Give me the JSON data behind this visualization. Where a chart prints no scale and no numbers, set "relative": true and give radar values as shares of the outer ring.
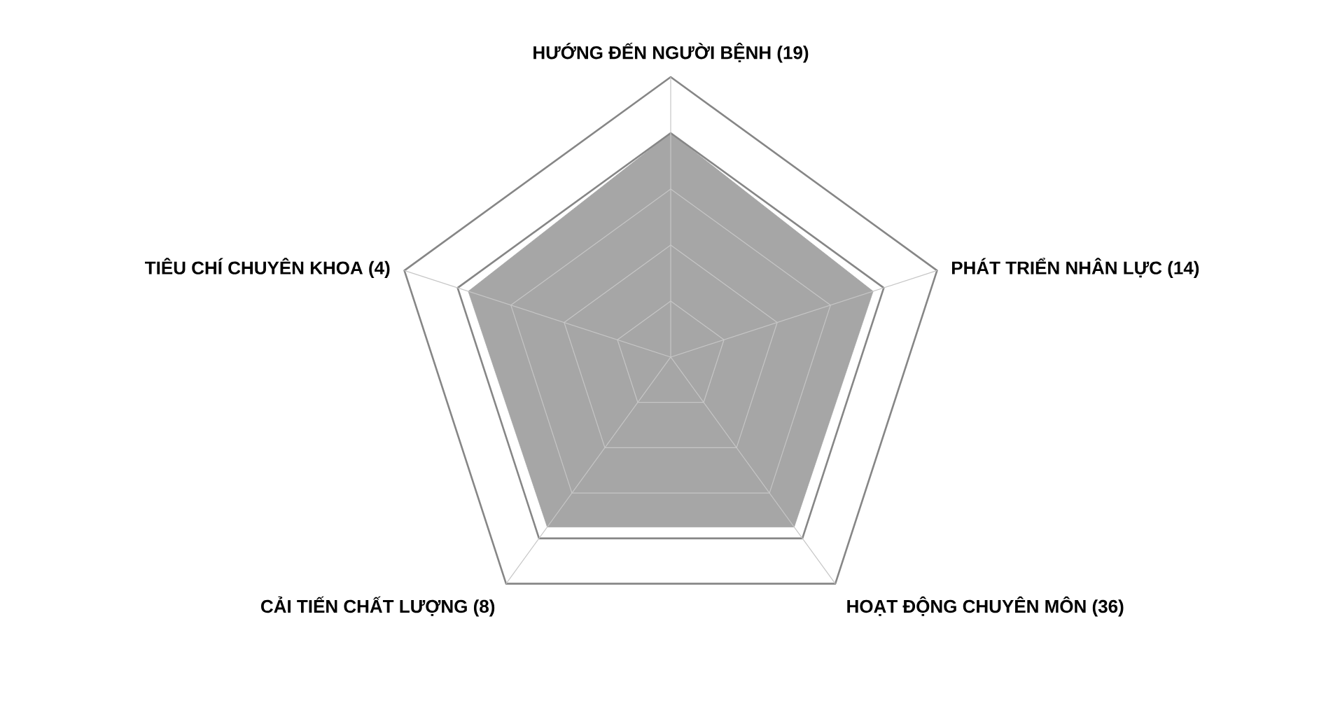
{
  "chart_data": {
    "type": "radar",
    "relative": true,
    "grid": true,
    "categories": [
      "HƯỚNG ĐẾN NGƯỜI BỆNH (19)",
      "PHÁT TRIỂN NHÂN LỰC (14)",
      "HOẠT ĐỘNG CHUYÊN MÔN (36)",
      "CẢI TIẾN CHẤT LƯỢNG (8)",
      "TIÊU CHÍ CHUYÊN KHOA (4)"
    ],
    "series": [
      {
        "color": "#a6a6a6",
        "values": [
          0.8,
          0.76,
          0.75,
          0.75,
          0.76
        ]
      }
    ]
  }
}
